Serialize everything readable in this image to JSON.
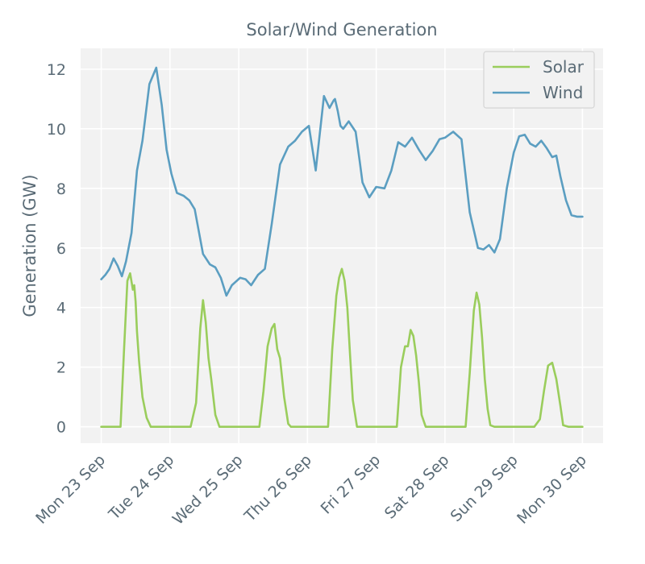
{
  "chart_data": {
    "type": "line",
    "title": "Solar/Wind Generation",
    "xlabel": "",
    "ylabel": "Generation (GW)",
    "xlim": [
      -0.3,
      7.3
    ],
    "ylim": [
      -0.55,
      12.7
    ],
    "yticks": [
      0,
      2,
      4,
      6,
      8,
      10,
      12
    ],
    "xticks": [
      {
        "pos": 0,
        "label": "Mon 23 Sep"
      },
      {
        "pos": 1,
        "label": "Tue 24 Sep"
      },
      {
        "pos": 2,
        "label": "Wed 25 Sep"
      },
      {
        "pos": 3,
        "label": "Thu 26 Sep"
      },
      {
        "pos": 4,
        "label": "Fri 27 Sep"
      },
      {
        "pos": 5,
        "label": "Sat 28 Sep"
      },
      {
        "pos": 6,
        "label": "Sun 29 Sep"
      },
      {
        "pos": 7,
        "label": "Mon 30 Sep"
      }
    ],
    "grid": true,
    "legend_position": "top-right",
    "series": [
      {
        "name": "Solar",
        "color": "#9acd5c",
        "x": [
          0,
          0.28,
          0.33,
          0.38,
          0.42,
          0.46,
          0.48,
          0.5,
          0.52,
          0.55,
          0.6,
          0.66,
          0.72,
          0.76,
          1.3,
          1.38,
          1.44,
          1.48,
          1.52,
          1.56,
          1.6,
          1.66,
          1.72,
          1.76,
          1.78,
          2.3,
          2.36,
          2.42,
          2.48,
          2.52,
          2.56,
          2.6,
          2.66,
          2.72,
          2.76,
          2.8,
          3.3,
          3.36,
          3.42,
          3.46,
          3.5,
          3.54,
          3.58,
          3.62,
          3.66,
          3.72,
          3.76,
          3.78,
          4.3,
          4.36,
          4.42,
          4.46,
          4.5,
          4.54,
          4.58,
          4.62,
          4.66,
          4.72,
          4.76,
          4.8,
          5.3,
          5.36,
          5.42,
          5.46,
          5.5,
          5.54,
          5.58,
          5.62,
          5.66,
          5.72,
          5.78,
          6.3,
          6.38,
          6.44,
          6.5,
          6.56,
          6.62,
          6.68,
          6.72,
          6.8,
          7.0
        ],
        "values": [
          0,
          0,
          2.5,
          4.9,
          5.15,
          4.6,
          4.75,
          4.2,
          3.2,
          2.2,
          1.0,
          0.3,
          0,
          0,
          0,
          0.8,
          3.3,
          4.25,
          3.5,
          2.3,
          1.6,
          0.4,
          0,
          0,
          0,
          0,
          1.2,
          2.7,
          3.3,
          3.45,
          2.6,
          2.3,
          1.0,
          0.1,
          0,
          0,
          0,
          2.6,
          4.4,
          5.0,
          5.3,
          4.9,
          4.0,
          2.4,
          0.9,
          0,
          0,
          0,
          0,
          2.0,
          2.7,
          2.7,
          3.25,
          3.05,
          2.4,
          1.5,
          0.4,
          0,
          0,
          0,
          0,
          1.8,
          3.9,
          4.5,
          4.1,
          3.0,
          1.6,
          0.6,
          0.05,
          0,
          0,
          0,
          0.25,
          1.2,
          2.05,
          2.15,
          1.6,
          0.7,
          0.05,
          0,
          0
        ]
      },
      {
        "name": "Wind",
        "color": "#5b9ec1",
        "x": [
          0,
          0.06,
          0.12,
          0.18,
          0.24,
          0.3,
          0.36,
          0.44,
          0.52,
          0.6,
          0.7,
          0.8,
          0.88,
          0.95,
          1.02,
          1.1,
          1.2,
          1.28,
          1.36,
          1.48,
          1.58,
          1.66,
          1.74,
          1.82,
          1.9,
          2.02,
          2.1,
          2.18,
          2.28,
          2.38,
          2.48,
          2.6,
          2.72,
          2.82,
          2.92,
          3.02,
          3.12,
          3.24,
          3.32,
          3.38,
          3.4,
          3.44,
          3.48,
          3.52,
          3.6,
          3.7,
          3.76,
          3.8,
          3.9,
          4.0,
          4.12,
          4.22,
          4.32,
          4.42,
          4.52,
          4.62,
          4.72,
          4.82,
          4.92,
          5.0,
          5.12,
          5.24,
          5.36,
          5.48,
          5.56,
          5.64,
          5.72,
          5.8,
          5.9,
          6.0,
          6.08,
          6.16,
          6.24,
          6.32,
          6.4,
          6.48,
          6.56,
          6.62,
          6.68,
          6.76,
          6.84,
          6.92,
          7.0
        ],
        "values": [
          4.95,
          5.1,
          5.3,
          5.65,
          5.4,
          5.05,
          5.55,
          6.5,
          8.6,
          9.6,
          11.5,
          12.05,
          10.8,
          9.3,
          8.5,
          7.85,
          7.75,
          7.6,
          7.3,
          5.8,
          5.45,
          5.35,
          5.0,
          4.4,
          4.75,
          5.0,
          4.95,
          4.75,
          5.1,
          5.3,
          6.8,
          8.8,
          9.4,
          9.6,
          9.9,
          10.1,
          8.6,
          11.1,
          10.7,
          10.95,
          11.0,
          10.6,
          10.1,
          10.0,
          10.25,
          9.9,
          8.9,
          8.2,
          7.7,
          8.05,
          8.0,
          8.6,
          9.55,
          9.4,
          9.7,
          9.3,
          8.95,
          9.25,
          9.65,
          9.7,
          9.9,
          9.65,
          7.2,
          6.0,
          5.95,
          6.1,
          5.85,
          6.3,
          8.0,
          9.2,
          9.75,
          9.8,
          9.5,
          9.4,
          9.6,
          9.35,
          9.05,
          9.1,
          8.4,
          7.6,
          7.1,
          7.05,
          7.05
        ]
      }
    ]
  }
}
